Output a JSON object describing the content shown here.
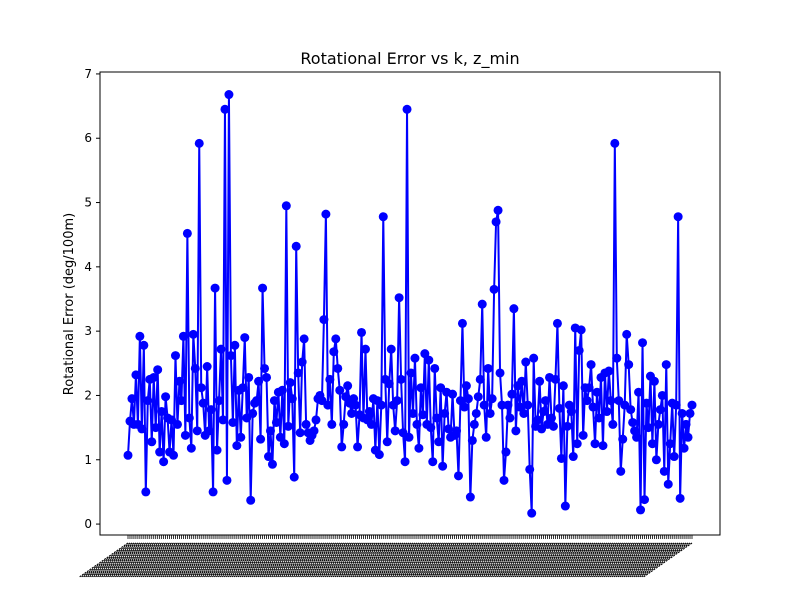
{
  "chart_data": {
    "type": "line",
    "title": "Rotational Error vs k, z_min",
    "xlabel": "",
    "ylabel": "Rotational Error (deg/100m)",
    "ylim": [
      -0.17,
      7.03
    ],
    "yticks": [
      0,
      1,
      2,
      3,
      4,
      5,
      6,
      7
    ],
    "grid": false,
    "legend": "none",
    "series_color": "#0000ff",
    "x_tick_labels_note": "",
    "series": [
      {
        "values": [
          1.07,
          1.6,
          1.95,
          1.55,
          2.32,
          1.55,
          2.92,
          1.48,
          2.78,
          0.5,
          1.92,
          2.25,
          1.28,
          2.28,
          1.5,
          2.4,
          1.12,
          1.75,
          0.97,
          1.98,
          1.65,
          1.12,
          1.62,
          1.07,
          2.62,
          1.55,
          2.22,
          1.92,
          2.92,
          1.38,
          4.52,
          1.65,
          1.18,
          2.95,
          2.42,
          1.45,
          5.92,
          2.12,
          1.88,
          1.38,
          2.45,
          1.45,
          1.78,
          0.5,
          3.67,
          1.15,
          1.92,
          2.72,
          1.62,
          6.45,
          0.68,
          6.68,
          2.62,
          1.58,
          2.78,
          1.22,
          2.08,
          1.35,
          2.12,
          2.9,
          1.65,
          2.28,
          0.37,
          1.72,
          1.88,
          1.92,
          2.22,
          1.32,
          3.67,
          2.42,
          2.28,
          1.05,
          1.45,
          0.93,
          1.92,
          1.58,
          2.05,
          1.35,
          2.08,
          1.25,
          4.95,
          1.52,
          2.2,
          1.95,
          0.73,
          4.32,
          2.35,
          1.42,
          2.52,
          2.88,
          1.55,
          1.42,
          1.3,
          1.38,
          1.45,
          1.62,
          1.95,
          2.0,
          1.92,
          3.18,
          4.82,
          1.85,
          2.25,
          1.55,
          2.68,
          2.88,
          2.42,
          2.08,
          1.2,
          1.55,
          1.98,
          2.15,
          1.88,
          1.72,
          1.95,
          1.85,
          1.2,
          1.7,
          2.98,
          1.65,
          2.72,
          1.62,
          1.75,
          1.55,
          1.95,
          1.15,
          1.92,
          1.08,
          1.85,
          4.78,
          2.25,
          1.28,
          2.18,
          2.72,
          1.85,
          1.45,
          1.92,
          3.52,
          2.25,
          1.42,
          0.97,
          6.45,
          1.35,
          2.35,
          1.72,
          2.58,
          1.55,
          1.18,
          2.12,
          1.7,
          2.65,
          1.55,
          2.55,
          1.5,
          0.97,
          2.42,
          1.65,
          1.28,
          2.12,
          0.9,
          1.72,
          2.05,
          1.48,
          1.35,
          2.02,
          1.38,
          1.45,
          0.75,
          1.92,
          3.12,
          1.82,
          2.15,
          1.95,
          0.42,
          1.3,
          1.55,
          1.72,
          1.98,
          2.25,
          3.42,
          1.85,
          1.35,
          2.42,
          1.72,
          1.95,
          3.65,
          4.7,
          4.88,
          2.35,
          1.85,
          0.68,
          1.12,
          1.85,
          1.65,
          2.02,
          3.35,
          1.45,
          2.15,
          1.82,
          2.22,
          1.72,
          2.52,
          1.85,
          0.85,
          0.17,
          2.58,
          1.52,
          1.62,
          2.22,
          1.48,
          1.75,
          1.92,
          1.55,
          2.28,
          1.65,
          1.52,
          2.25,
          3.12,
          1.8,
          1.02,
          2.15,
          0.28,
          1.52,
          1.85,
          1.75,
          1.05,
          3.05,
          1.25,
          2.7,
          3.02,
          1.38,
          2.12,
          1.92,
          2.12,
          2.48,
          1.82,
          1.25,
          2.05,
          1.65,
          2.28,
          1.22,
          2.35,
          1.75,
          2.38,
          1.92,
          1.55,
          5.92,
          2.58,
          1.92,
          0.82,
          1.32,
          1.85,
          2.95,
          2.48,
          1.78,
          1.58,
          1.45,
          1.35,
          2.05,
          0.22,
          2.82,
          0.38,
          1.88,
          1.5,
          2.3,
          1.25,
          2.22,
          1.0,
          1.55,
          1.78,
          2.0,
          0.82,
          2.48,
          0.62,
          1.25,
          1.88,
          1.05,
          1.85,
          4.78,
          0.4,
          1.72,
          1.18,
          1.55,
          1.35,
          1.72,
          1.85
        ]
      }
    ]
  }
}
